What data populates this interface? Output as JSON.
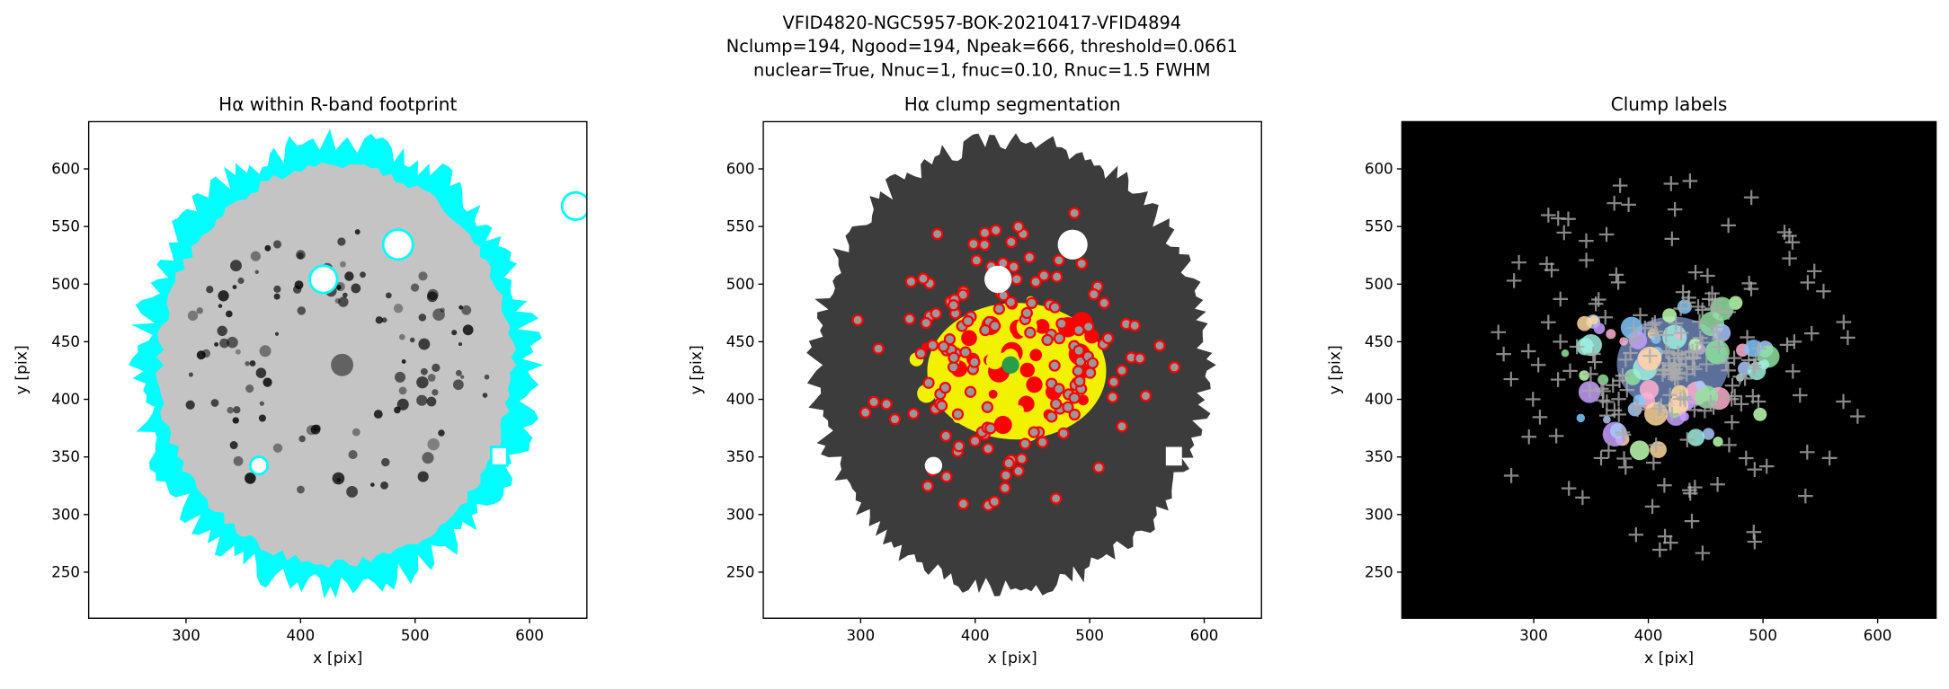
{
  "suptitle": [
    "VFID4820-NGC5957-BOK-20210417-VFID4894",
    "Nclump=194, Ngood=194, Npeak=666, threshold=0.0661",
    "nuclear=True, Nnuc=1, fnuc=0.10, Rnuc=1.5 FWHM"
  ],
  "chart_data": [
    {
      "type": "image",
      "title": "Hα within R-band footprint",
      "xlabel": "x [pix]",
      "ylabel": "y [pix]",
      "xlim": [
        215,
        650
      ],
      "ylim": [
        210,
        641
      ],
      "xticks": [
        300,
        400,
        500,
        600
      ],
      "yticks": [
        250,
        300,
        350,
        400,
        450,
        500,
        550,
        600
      ]
    },
    {
      "type": "image",
      "title": "Hα clump segmentation",
      "xlabel": "x [pix]",
      "ylabel": "y [pix]",
      "xlim": [
        215,
        650
      ],
      "ylim": [
        210,
        641
      ],
      "xticks": [
        300,
        400,
        500,
        600
      ],
      "yticks": [
        250,
        300,
        350,
        400,
        450,
        500,
        550,
        600
      ]
    },
    {
      "type": "image",
      "title": "Clump labels",
      "xlabel": "x [pix]",
      "ylabel": "y [pix]",
      "xlim": [
        185,
        651
      ],
      "ylim": [
        210,
        641
      ],
      "xticks": [
        300,
        400,
        500,
        600
      ],
      "yticks": [
        250,
        300,
        350,
        400,
        450,
        500,
        550,
        600
      ]
    }
  ]
}
